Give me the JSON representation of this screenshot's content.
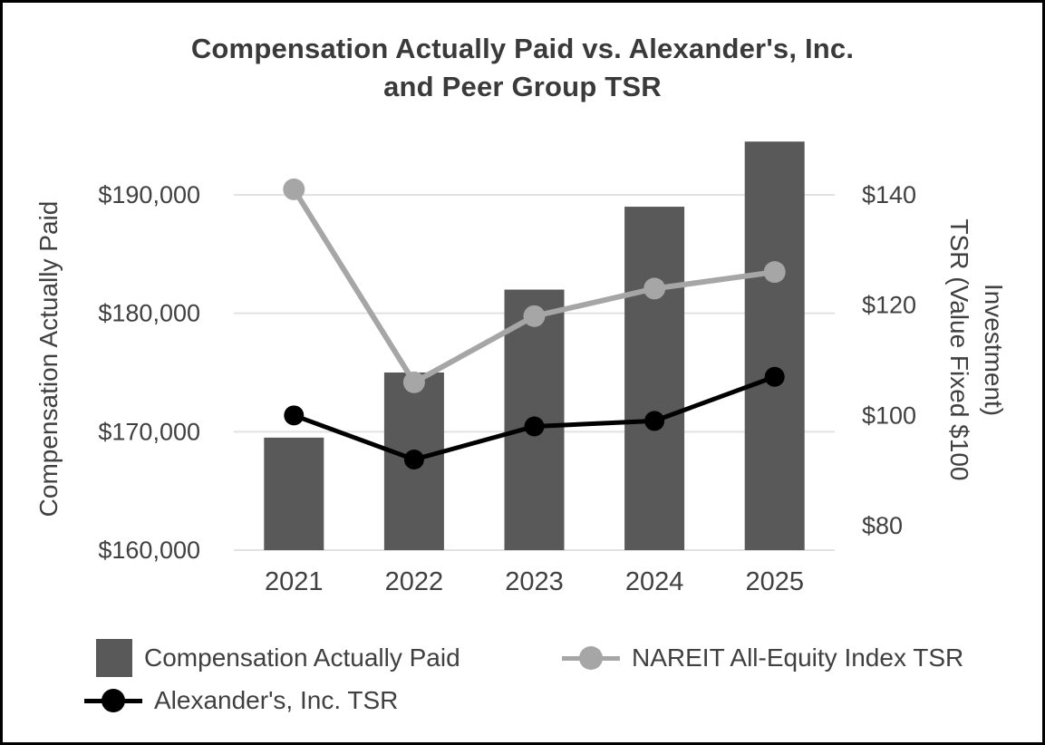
{
  "title": {
    "line1": "Compensation Actually Paid vs. Alexander's, Inc.",
    "line2": "and Peer Group TSR"
  },
  "axes": {
    "left_title": "Compensation Actually Paid",
    "right_title_line1": "TSR (Value Fixed $100",
    "right_title_line2": "Investment)",
    "left_ticks": [
      "$160,000",
      "$170,000",
      "$180,000",
      "$190,000"
    ],
    "right_ticks": [
      "$80",
      "$100",
      "$120",
      "$140"
    ]
  },
  "chart_data": {
    "type": "combo",
    "title": "Compensation Actually Paid vs. Alexander's, Inc. and Peer Group TSR",
    "categories": [
      "2021",
      "2022",
      "2023",
      "2024",
      "2025"
    ],
    "series": [
      {
        "name": "Compensation Actually Paid",
        "type": "bar",
        "axis": "left",
        "color": "#595959",
        "values": [
          169500,
          175000,
          182000,
          189000,
          194500
        ]
      },
      {
        "name": "NAREIT All-Equity Index TSR",
        "type": "line",
        "axis": "right",
        "color": "#a6a6a6",
        "values": [
          141,
          106,
          118,
          123,
          126
        ]
      },
      {
        "name": "Alexander's, Inc. TSR",
        "type": "line",
        "axis": "right",
        "color": "#000000",
        "values": [
          100,
          92,
          98,
          99,
          107
        ]
      }
    ],
    "left_axis": {
      "label": "Compensation Actually Paid",
      "min": 160000,
      "max": 190000,
      "tick_step": 10000
    },
    "right_axis": {
      "label": "TSR (Value Fixed $100 Investment)",
      "min": 80,
      "max": 140,
      "tick_step": 20
    },
    "grid": true,
    "legend_position": "bottom"
  },
  "legend": {
    "items": [
      {
        "label": "Compensation Actually Paid",
        "swatch": "bar-square",
        "color": "#595959"
      },
      {
        "label": "NAREIT All-Equity Index TSR",
        "swatch": "line-circle",
        "color": "#a6a6a6"
      },
      {
        "label": "Alexander's, Inc. TSR",
        "swatch": "line-circle",
        "color": "#000000"
      }
    ]
  },
  "colors": {
    "grid": "#e2e2e2",
    "text": "#404040",
    "background": "#ffffff",
    "border": "#000000"
  }
}
